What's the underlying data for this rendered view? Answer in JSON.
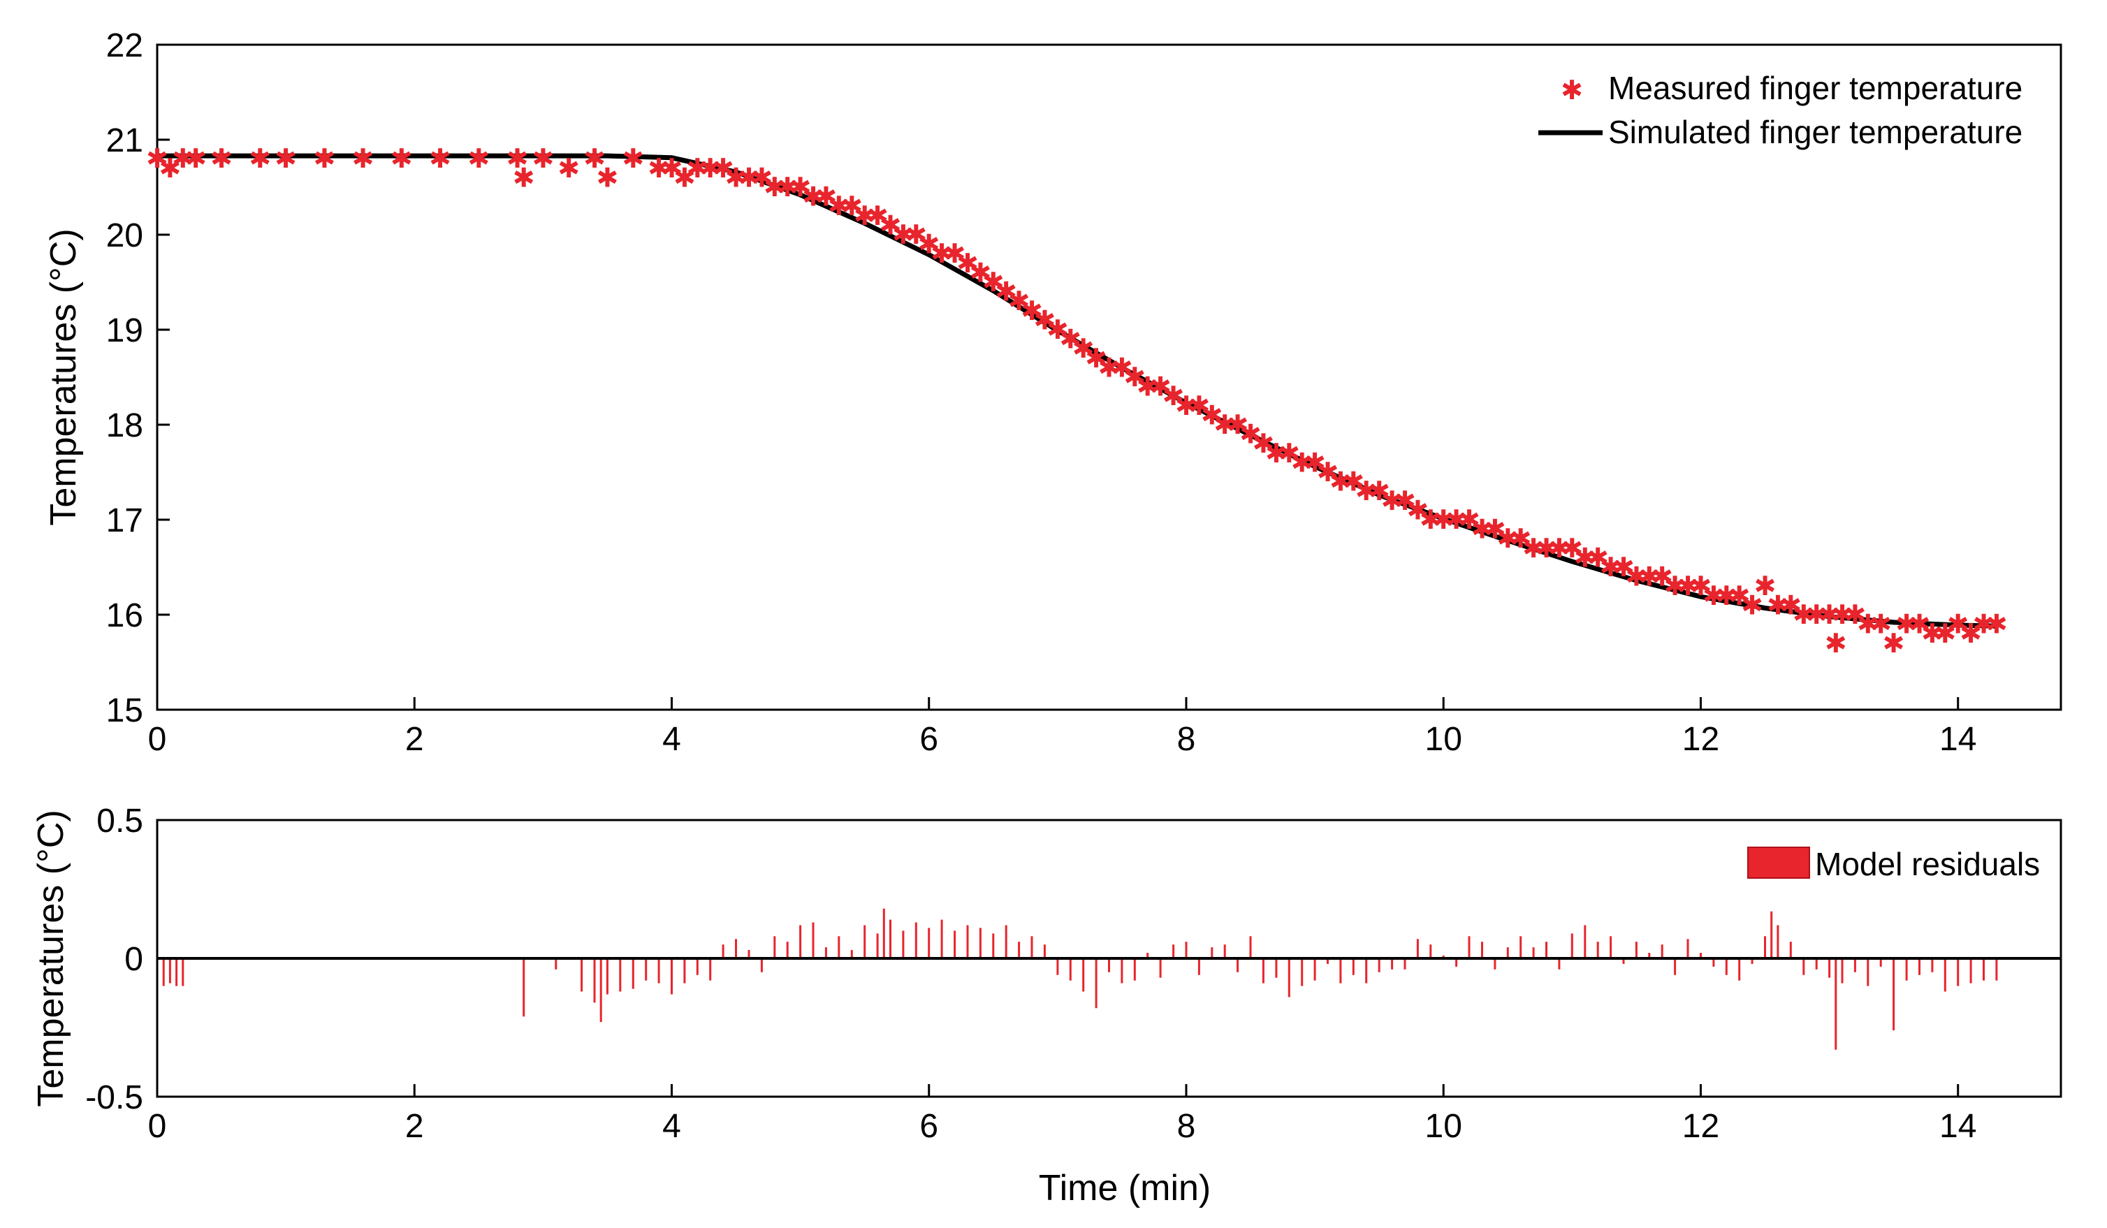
{
  "colors": {
    "measured": "#e8242c",
    "simulated": "#000000",
    "residuals": "#e8242c",
    "background": "#ffffff"
  },
  "chart_data": [
    {
      "type": "scatter",
      "id": "top",
      "xlabel": "",
      "ylabel": "Temperatures (°C)",
      "xlim": [
        0,
        14.8
      ],
      "ylim": [
        15,
        22
      ],
      "xticks": [
        "0",
        "2",
        "4",
        "6",
        "8",
        "10",
        "12",
        "14"
      ],
      "yticks": [
        "15",
        "16",
        "17",
        "18",
        "19",
        "20",
        "21",
        "22"
      ],
      "legend": {
        "placement": "top-right",
        "entries": [
          "Measured finger temperature",
          "Simulated finger temperature"
        ]
      },
      "series": [
        {
          "name": "Measured finger temperature",
          "marker": "*",
          "x": [
            0.0,
            0.1,
            0.2,
            0.3,
            0.5,
            0.8,
            1.0,
            1.3,
            1.6,
            1.9,
            2.2,
            2.5,
            2.8,
            2.85,
            3.0,
            3.2,
            3.4,
            3.5,
            3.7,
            3.9,
            4.0,
            4.1,
            4.2,
            4.3,
            4.4,
            4.5,
            4.6,
            4.7,
            4.8,
            4.9,
            5.0,
            5.1,
            5.2,
            5.3,
            5.4,
            5.5,
            5.6,
            5.7,
            5.8,
            5.9,
            6.0,
            6.1,
            6.2,
            6.3,
            6.4,
            6.5,
            6.6,
            6.7,
            6.8,
            6.9,
            7.0,
            7.1,
            7.2,
            7.3,
            7.4,
            7.5,
            7.6,
            7.7,
            7.8,
            7.9,
            8.0,
            8.1,
            8.2,
            8.3,
            8.4,
            8.5,
            8.6,
            8.7,
            8.8,
            8.9,
            9.0,
            9.1,
            9.2,
            9.3,
            9.4,
            9.5,
            9.6,
            9.7,
            9.8,
            9.9,
            10.0,
            10.1,
            10.2,
            10.3,
            10.4,
            10.5,
            10.6,
            10.7,
            10.8,
            10.9,
            11.0,
            11.1,
            11.2,
            11.3,
            11.4,
            11.5,
            11.6,
            11.7,
            11.8,
            11.9,
            12.0,
            12.1,
            12.2,
            12.3,
            12.4,
            12.5,
            12.6,
            12.7,
            12.8,
            12.9,
            13.0,
            13.05,
            13.1,
            13.2,
            13.3,
            13.4,
            13.5,
            13.6,
            13.7,
            13.8,
            13.9,
            14.0,
            14.1,
            14.2,
            14.3
          ],
          "y": [
            20.8,
            20.7,
            20.8,
            20.8,
            20.8,
            20.8,
            20.8,
            20.8,
            20.8,
            20.8,
            20.8,
            20.8,
            20.8,
            20.6,
            20.8,
            20.7,
            20.8,
            20.6,
            20.8,
            20.7,
            20.7,
            20.6,
            20.7,
            20.7,
            20.7,
            20.6,
            20.6,
            20.6,
            20.5,
            20.5,
            20.5,
            20.4,
            20.4,
            20.3,
            20.3,
            20.2,
            20.2,
            20.1,
            20.0,
            20.0,
            19.9,
            19.8,
            19.8,
            19.7,
            19.6,
            19.5,
            19.4,
            19.3,
            19.2,
            19.1,
            19.0,
            18.9,
            18.8,
            18.7,
            18.6,
            18.6,
            18.5,
            18.4,
            18.4,
            18.3,
            18.2,
            18.2,
            18.1,
            18.0,
            18.0,
            17.9,
            17.8,
            17.7,
            17.7,
            17.6,
            17.6,
            17.5,
            17.4,
            17.4,
            17.3,
            17.3,
            17.2,
            17.2,
            17.1,
            17.0,
            17.0,
            17.0,
            17.0,
            16.9,
            16.9,
            16.8,
            16.8,
            16.7,
            16.7,
            16.7,
            16.7,
            16.6,
            16.6,
            16.5,
            16.5,
            16.4,
            16.4,
            16.4,
            16.3,
            16.3,
            16.3,
            16.2,
            16.2,
            16.2,
            16.1,
            16.3,
            16.1,
            16.1,
            16.0,
            16.0,
            16.0,
            15.7,
            16.0,
            16.0,
            15.9,
            15.9,
            15.7,
            15.9,
            15.9,
            15.8,
            15.8,
            15.9,
            15.8,
            15.9,
            15.9
          ]
        },
        {
          "name": "Simulated finger temperature",
          "type": "line",
          "x": [
            0,
            0.5,
            1,
            1.5,
            2,
            2.5,
            3,
            3.5,
            4,
            4.5,
            5,
            5.5,
            6,
            6.5,
            7,
            7.5,
            8,
            8.5,
            9,
            9.5,
            10,
            10.5,
            11,
            11.5,
            12,
            12.5,
            13,
            13.5,
            14,
            14.3
          ],
          "y": [
            20.83,
            20.83,
            20.83,
            20.83,
            20.83,
            20.83,
            20.83,
            20.83,
            20.81,
            20.66,
            20.42,
            20.12,
            19.79,
            19.41,
            18.99,
            18.6,
            18.23,
            17.89,
            17.56,
            17.26,
            17.01,
            16.78,
            16.56,
            16.36,
            16.19,
            16.07,
            15.98,
            15.92,
            15.89,
            15.88
          ]
        }
      ]
    },
    {
      "type": "bar",
      "id": "bottom",
      "xlabel": "Time (min)",
      "ylabel": "Temperatures (°C)",
      "xlim": [
        0,
        14.8
      ],
      "ylim": [
        -0.5,
        0.5
      ],
      "xticks": [
        "0",
        "2",
        "4",
        "6",
        "8",
        "10",
        "12",
        "14"
      ],
      "yticks": [
        "-0.5",
        "0",
        "0.5"
      ],
      "legend": {
        "placement": "top-right",
        "entries": [
          "Model residuals"
        ]
      },
      "series": [
        {
          "name": "Model residuals",
          "x": [
            0.05,
            0.1,
            0.15,
            0.2,
            2.85,
            3.1,
            3.3,
            3.4,
            3.45,
            3.5,
            3.6,
            3.7,
            3.8,
            3.9,
            4.0,
            4.1,
            4.2,
            4.3,
            4.4,
            4.5,
            4.6,
            4.7,
            4.8,
            4.9,
            5.0,
            5.1,
            5.2,
            5.3,
            5.4,
            5.5,
            5.6,
            5.65,
            5.7,
            5.8,
            5.9,
            6.0,
            6.1,
            6.2,
            6.3,
            6.4,
            6.5,
            6.6,
            6.7,
            6.8,
            6.9,
            7.0,
            7.1,
            7.2,
            7.3,
            7.4,
            7.5,
            7.6,
            7.7,
            7.8,
            7.9,
            8.0,
            8.1,
            8.2,
            8.3,
            8.4,
            8.5,
            8.6,
            8.7,
            8.8,
            8.9,
            9.0,
            9.1,
            9.2,
            9.3,
            9.4,
            9.5,
            9.6,
            9.7,
            9.8,
            9.9,
            10.0,
            10.1,
            10.2,
            10.3,
            10.4,
            10.5,
            10.6,
            10.7,
            10.8,
            10.9,
            11.0,
            11.1,
            11.2,
            11.3,
            11.4,
            11.5,
            11.6,
            11.7,
            11.8,
            11.9,
            12.0,
            12.1,
            12.2,
            12.3,
            12.4,
            12.5,
            12.55,
            12.6,
            12.7,
            12.8,
            12.9,
            13.0,
            13.05,
            13.1,
            13.2,
            13.3,
            13.4,
            13.5,
            13.6,
            13.7,
            13.8,
            13.9,
            14.0,
            14.1,
            14.2,
            14.3
          ],
          "values": [
            -0.1,
            -0.09,
            -0.1,
            -0.1,
            -0.21,
            -0.04,
            -0.12,
            -0.16,
            -0.23,
            -0.13,
            -0.12,
            -0.11,
            -0.08,
            -0.09,
            -0.13,
            -0.09,
            -0.06,
            -0.08,
            0.05,
            0.07,
            0.03,
            -0.05,
            0.08,
            0.06,
            0.12,
            0.13,
            0.04,
            0.08,
            0.03,
            0.12,
            0.09,
            0.18,
            0.14,
            0.1,
            0.13,
            0.11,
            0.14,
            0.1,
            0.12,
            0.11,
            0.09,
            0.12,
            0.06,
            0.08,
            0.05,
            -0.06,
            -0.08,
            -0.12,
            -0.18,
            -0.05,
            -0.09,
            -0.08,
            0.02,
            -0.07,
            0.05,
            0.06,
            -0.06,
            0.04,
            0.05,
            -0.05,
            0.08,
            -0.09,
            -0.07,
            -0.14,
            -0.1,
            -0.08,
            -0.02,
            -0.09,
            -0.06,
            -0.09,
            -0.05,
            -0.04,
            -0.04,
            0.07,
            0.05,
            0.01,
            -0.03,
            0.08,
            0.06,
            -0.04,
            0.04,
            0.08,
            0.04,
            0.06,
            -0.04,
            0.09,
            0.12,
            0.06,
            0.08,
            -0.02,
            0.06,
            0.02,
            0.05,
            -0.06,
            0.07,
            0.02,
            -0.03,
            -0.06,
            -0.08,
            -0.02,
            0.08,
            0.17,
            0.12,
            0.06,
            -0.06,
            -0.04,
            -0.07,
            -0.33,
            -0.09,
            -0.05,
            -0.1,
            -0.03,
            -0.26,
            -0.08,
            -0.06,
            -0.05,
            -0.12,
            -0.1,
            -0.09,
            -0.08,
            -0.08
          ]
        }
      ]
    }
  ]
}
